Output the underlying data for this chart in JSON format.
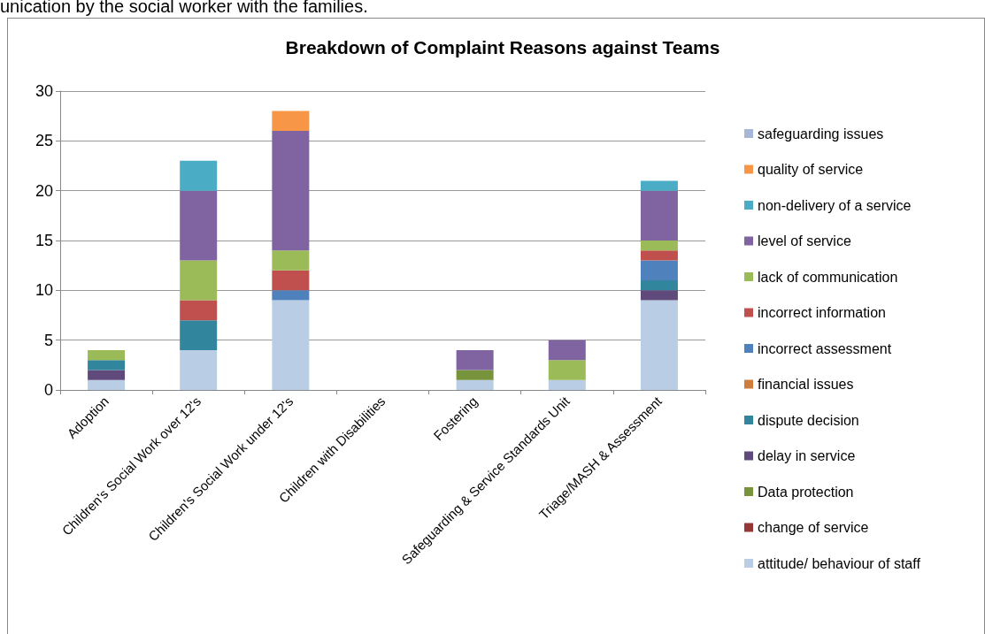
{
  "chart_data": {
    "type": "bar",
    "stacked": true,
    "title": "Breakdown of Complaint Reasons against Teams",
    "annotations": [
      "unication by the social worker with the families."
    ],
    "categories": [
      "Adoption",
      "Children's Social Work over 12's",
      "Children's Social Work under 12's",
      "Children with Disabilities",
      "Fostering",
      "Safeguarding & Service Standards Unit",
      "Triage/MASH & Assessment"
    ],
    "series": [
      {
        "name": "attitude/ behaviour of staff",
        "color": "#b9cde5",
        "values": [
          1,
          4,
          9,
          0,
          1,
          1,
          9
        ]
      },
      {
        "name": "change of service",
        "color": "#953735",
        "values": [
          0,
          0,
          0,
          0,
          0,
          0,
          0
        ]
      },
      {
        "name": "Data protection",
        "color": "#77933c",
        "values": [
          0,
          0,
          0,
          0,
          1,
          0,
          0
        ]
      },
      {
        "name": "delay in service",
        "color": "#604a7b",
        "values": [
          1,
          0,
          0,
          0,
          0,
          0,
          1
        ]
      },
      {
        "name": "dispute decision",
        "color": "#31859c",
        "values": [
          1,
          3,
          0,
          0,
          0,
          0,
          1
        ]
      },
      {
        "name": "financial issues",
        "color": "#d07c3a",
        "values": [
          0,
          0,
          0,
          0,
          0,
          0,
          0
        ]
      },
      {
        "name": "incorrect assessment",
        "color": "#4f81bd",
        "values": [
          0,
          0,
          1,
          0,
          0,
          0,
          2
        ]
      },
      {
        "name": "incorrect information",
        "color": "#c0504d",
        "values": [
          0,
          2,
          2,
          0,
          0,
          0,
          1
        ]
      },
      {
        "name": "lack of communication",
        "color": "#9bbb59",
        "values": [
          1,
          4,
          2,
          0,
          0,
          2,
          1
        ]
      },
      {
        "name": "level of service",
        "color": "#8064a2",
        "values": [
          0,
          7,
          12,
          0,
          2,
          2,
          5
        ]
      },
      {
        "name": "non-delivery of a service",
        "color": "#4bacc6",
        "values": [
          0,
          3,
          0,
          0,
          0,
          0,
          1
        ]
      },
      {
        "name": "quality of service",
        "color": "#f79646",
        "values": [
          0,
          0,
          2,
          0,
          0,
          0,
          0
        ]
      },
      {
        "name": "safeguarding issues",
        "color": "#a5b6d8",
        "values": [
          0,
          0,
          0,
          0,
          0,
          0,
          0
        ]
      }
    ],
    "ylim": [
      0,
      30
    ],
    "yticks": [
      0,
      5,
      10,
      15,
      20,
      25,
      30
    ],
    "grid": "y",
    "legend": "right"
  }
}
